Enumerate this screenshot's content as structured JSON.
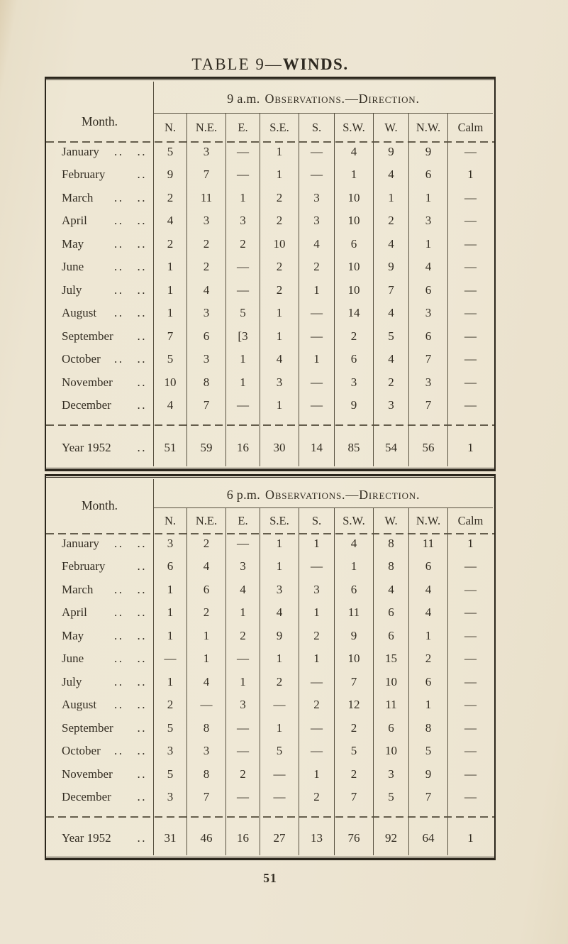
{
  "page": {
    "title_prefix": "TABLE 9—",
    "title_emphasis": "WINDS.",
    "number": "51"
  },
  "tables": [
    {
      "caption": {
        "prefix": "9 a.m.",
        "smallcaps": "Observations.—Direction."
      },
      "month_header": "Month.",
      "columns": [
        "N.",
        "N.E.",
        "E.",
        "S.E.",
        "S.",
        "S.W.",
        "W.",
        "N.W.",
        "Calm"
      ],
      "rows": [
        {
          "label": "January",
          "mid_dots": "..",
          "end_dots": "..",
          "values": [
            "5",
            "3",
            "—",
            "1",
            "—",
            "4",
            "9",
            "9",
            "—"
          ]
        },
        {
          "label": "February",
          "mid_dots": "",
          "end_dots": "..",
          "values": [
            "9",
            "7",
            "—",
            "1",
            "—",
            "1",
            "4",
            "6",
            "1"
          ]
        },
        {
          "label": "March",
          "mid_dots": "..",
          "end_dots": "..",
          "values": [
            "2",
            "11",
            "1",
            "2",
            "3",
            "10",
            "1",
            "1",
            "—"
          ]
        },
        {
          "label": "April",
          "mid_dots": "..",
          "end_dots": "..",
          "values": [
            "4",
            "3",
            "3",
            "2",
            "3",
            "10",
            "2",
            "3",
            "—"
          ]
        },
        {
          "label": "May",
          "mid_dots": "..",
          "end_dots": "..",
          "values": [
            "2",
            "2",
            "2",
            "10",
            "4",
            "6",
            "4",
            "1",
            "—"
          ]
        },
        {
          "label": "June",
          "mid_dots": "..",
          "end_dots": "..",
          "values": [
            "1",
            "2",
            "—",
            "2",
            "2",
            "10",
            "9",
            "4",
            "—"
          ]
        },
        {
          "label": "July",
          "mid_dots": "..",
          "end_dots": "..",
          "values": [
            "1",
            "4",
            "—",
            "2",
            "1",
            "10",
            "7",
            "6",
            "—"
          ]
        },
        {
          "label": "August",
          "mid_dots": "..",
          "end_dots": "..",
          "values": [
            "1",
            "3",
            "5",
            "1",
            "—",
            "14",
            "4",
            "3",
            "—"
          ]
        },
        {
          "label": "September",
          "mid_dots": "",
          "end_dots": "..",
          "values": [
            "7",
            "6",
            "[3",
            "1",
            "—",
            "2",
            "5",
            "6",
            "—"
          ]
        },
        {
          "label": "October",
          "mid_dots": "..",
          "end_dots": "..",
          "values": [
            "5",
            "3",
            "1",
            "4",
            "1",
            "6",
            "4",
            "7",
            "—"
          ]
        },
        {
          "label": "November",
          "mid_dots": "",
          "end_dots": "..",
          "values": [
            "10",
            "8",
            "1",
            "3",
            "—",
            "3",
            "2",
            "3",
            "—"
          ]
        },
        {
          "label": "December",
          "mid_dots": "",
          "end_dots": "..",
          "values": [
            "4",
            "7",
            "—",
            "1",
            "—",
            "9",
            "3",
            "7",
            "—"
          ]
        }
      ],
      "total": {
        "label": "Year 1952",
        "mid_dots": "",
        "end_dots": "..",
        "values": [
          "51",
          "59",
          "16",
          "30",
          "14",
          "85",
          "54",
          "56",
          "1"
        ]
      }
    },
    {
      "caption": {
        "prefix": "6 p.m.",
        "smallcaps": "Observations.—Direction."
      },
      "month_header": "Month.",
      "columns": [
        "N.",
        "N.E.",
        "E.",
        "S.E.",
        "S.",
        "S.W.",
        "W.",
        "N.W.",
        "Calm"
      ],
      "rows": [
        {
          "label": "January",
          "mid_dots": "..",
          "end_dots": "..",
          "values": [
            "3",
            "2",
            "—",
            "1",
            "1",
            "4",
            "8",
            "11",
            "1"
          ]
        },
        {
          "label": "February",
          "mid_dots": "",
          "end_dots": "..",
          "values": [
            "6",
            "4",
            "3",
            "1",
            "—",
            "1",
            "8",
            "6",
            "—"
          ]
        },
        {
          "label": "March",
          "mid_dots": "..",
          "end_dots": "..",
          "values": [
            "1",
            "6",
            "4",
            "3",
            "3",
            "6",
            "4",
            "4",
            "—"
          ]
        },
        {
          "label": "April",
          "mid_dots": "..",
          "end_dots": "..",
          "values": [
            "1",
            "2",
            "1",
            "4",
            "1",
            "11",
            "6",
            "4",
            "—"
          ]
        },
        {
          "label": "May",
          "mid_dots": "..",
          "end_dots": "..",
          "values": [
            "1",
            "1",
            "2",
            "9",
            "2",
            "9",
            "6",
            "1",
            "—"
          ]
        },
        {
          "label": "June",
          "mid_dots": "..",
          "end_dots": "..",
          "values": [
            "—",
            "1",
            "—",
            "1",
            "1",
            "10",
            "15",
            "2",
            "—"
          ]
        },
        {
          "label": "July",
          "mid_dots": "..",
          "end_dots": "..",
          "values": [
            "1",
            "4",
            "1",
            "2",
            "—",
            "7",
            "10",
            "6",
            "—"
          ]
        },
        {
          "label": "August",
          "mid_dots": "..",
          "end_dots": "..",
          "values": [
            "2",
            "—",
            "3",
            "—",
            "2",
            "12",
            "11",
            "1",
            "—"
          ]
        },
        {
          "label": "September",
          "mid_dots": "",
          "end_dots": "..",
          "values": [
            "5",
            "8",
            "—",
            "1",
            "—",
            "2",
            "6",
            "8",
            "—"
          ]
        },
        {
          "label": "October",
          "mid_dots": "..",
          "end_dots": "..",
          "values": [
            "3",
            "3",
            "—",
            "5",
            "—",
            "5",
            "10",
            "5",
            "—"
          ]
        },
        {
          "label": "November",
          "mid_dots": "",
          "end_dots": "..",
          "values": [
            "5",
            "8",
            "2",
            "—",
            "1",
            "2",
            "3",
            "9",
            "—"
          ]
        },
        {
          "label": "December",
          "mid_dots": "",
          "end_dots": "..",
          "values": [
            "3",
            "7",
            "—",
            "—",
            "2",
            "7",
            "5",
            "7",
            "—"
          ]
        }
      ],
      "total": {
        "label": "Year 1952",
        "mid_dots": "",
        "end_dots": "..",
        "values": [
          "31",
          "46",
          "16",
          "27",
          "13",
          "76",
          "92",
          "64",
          "1"
        ]
      }
    }
  ]
}
